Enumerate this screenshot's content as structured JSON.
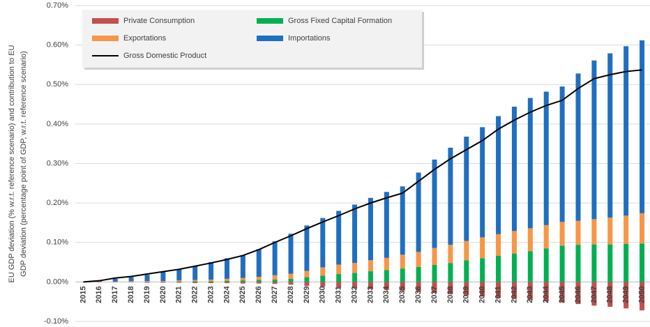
{
  "chart_data": {
    "type": "bar",
    "stacked": true,
    "y_label": [
      "EU GDP deviation (% w.r.t. reference scenario) and contribution to EU",
      "GDP deviation (percentage point of GDP, w.r.t. reference scenario)"
    ],
    "categories": [
      "2015",
      "2016",
      "2017",
      "2018",
      "2019",
      "2020",
      "2021",
      "2022",
      "2023",
      "2024",
      "2025",
      "2026",
      "2027",
      "2028",
      "2029",
      "2030",
      "2031",
      "2032",
      "2033",
      "2034",
      "2035",
      "2036",
      "2037",
      "2038",
      "2039",
      "2040",
      "2041",
      "2042",
      "2043",
      "2044",
      "2045",
      "2046",
      "2047",
      "2048",
      "2049",
      "2050"
    ],
    "series": [
      {
        "name": "Private Consumption",
        "color": "#c0504d",
        "type": "bar",
        "values": [
          0,
          -0.001,
          -0.001,
          -0.001,
          -0.002,
          -0.002,
          -0.002,
          -0.003,
          -0.003,
          -0.003,
          -0.004,
          -0.004,
          -0.005,
          -0.007,
          -0.01,
          -0.012,
          -0.014,
          -0.016,
          -0.018,
          -0.02,
          -0.022,
          -0.025,
          -0.028,
          -0.031,
          -0.034,
          -0.037,
          -0.04,
          -0.043,
          -0.046,
          -0.049,
          -0.052,
          -0.056,
          -0.06,
          -0.063,
          -0.067,
          -0.072
        ]
      },
      {
        "name": "Gross Fixed Capital Formation",
        "color": "#00b050",
        "type": "bar",
        "values": [
          0,
          0,
          0,
          0,
          0,
          0,
          0.001,
          0.002,
          0.002,
          0.003,
          0.004,
          0.005,
          0.006,
          0.008,
          0.012,
          0.016,
          0.02,
          0.023,
          0.027,
          0.03,
          0.034,
          0.038,
          0.043,
          0.048,
          0.055,
          0.06,
          0.066,
          0.072,
          0.078,
          0.085,
          0.092,
          0.094,
          0.095,
          0.095,
          0.096,
          0.097
        ]
      },
      {
        "name": "Exportations",
        "color": "#f79646",
        "type": "bar",
        "values": [
          0,
          0.001,
          0.001,
          0.002,
          0.002,
          0.002,
          0.003,
          0.003,
          0.004,
          0.005,
          0.006,
          0.008,
          0.011,
          0.013,
          0.016,
          0.021,
          0.024,
          0.025,
          0.028,
          0.031,
          0.035,
          0.038,
          0.043,
          0.046,
          0.049,
          0.053,
          0.055,
          0.057,
          0.058,
          0.059,
          0.06,
          0.061,
          0.064,
          0.068,
          0.072,
          0.077
        ]
      },
      {
        "name": "Importations",
        "color": "#1f6fc0",
        "type": "bar",
        "values": [
          0,
          0.002,
          0.007,
          0.01,
          0.016,
          0.023,
          0.028,
          0.035,
          0.044,
          0.052,
          0.058,
          0.07,
          0.086,
          0.101,
          0.115,
          0.125,
          0.136,
          0.148,
          0.158,
          0.167,
          0.173,
          0.201,
          0.224,
          0.246,
          0.264,
          0.279,
          0.299,
          0.315,
          0.33,
          0.338,
          0.343,
          0.373,
          0.402,
          0.416,
          0.429,
          0.438
        ]
      },
      {
        "name": "Gross Domestic Product",
        "color": "#000000",
        "type": "line",
        "values": [
          0,
          0.003,
          0.01,
          0.014,
          0.02,
          0.026,
          0.032,
          0.04,
          0.048,
          0.057,
          0.067,
          0.082,
          0.1,
          0.117,
          0.135,
          0.152,
          0.168,
          0.185,
          0.2,
          0.213,
          0.225,
          0.255,
          0.285,
          0.312,
          0.335,
          0.358,
          0.387,
          0.41,
          0.43,
          0.447,
          0.46,
          0.49,
          0.515,
          0.525,
          0.533,
          0.537
        ]
      }
    ],
    "ylim": [
      -0.1,
      0.7
    ],
    "yticks": [
      {
        "value": -0.1,
        "label": "-0.10%"
      },
      {
        "value": 0,
        "label": "0.00%"
      },
      {
        "value": 0.1,
        "label": "0.10%"
      },
      {
        "value": 0.2,
        "label": "0.20%"
      },
      {
        "value": 0.3,
        "label": "0.30%"
      },
      {
        "value": 0.4,
        "label": "0.40%"
      },
      {
        "value": 0.5,
        "label": "0.50%"
      },
      {
        "value": 0.6,
        "label": "0.60%"
      },
      {
        "value": 0.7,
        "label": "0.70%"
      }
    ],
    "grid": true,
    "legend": "upper left"
  }
}
